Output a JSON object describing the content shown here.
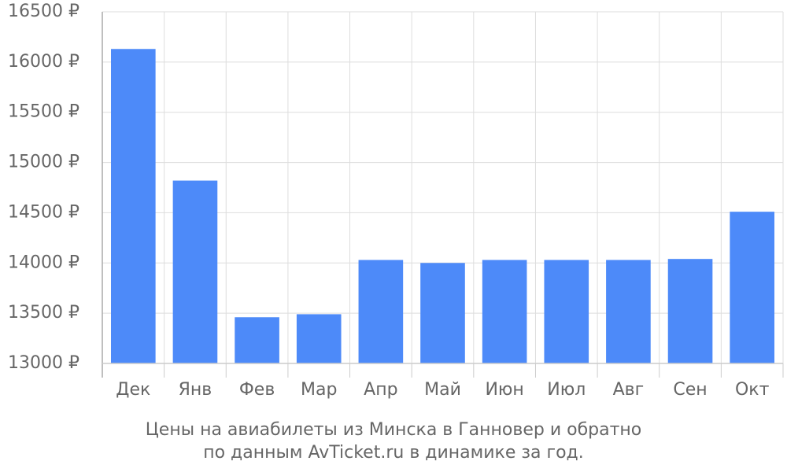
{
  "chart_data": {
    "type": "bar",
    "title": "Цены на авиабилеты из Минска в Ганновер и обратно",
    "subtitle": "по данным AvTicket.ru в динамике за год.",
    "categories": [
      "Дек",
      "Янв",
      "Фев",
      "Мар",
      "Апр",
      "Май",
      "Июн",
      "Июл",
      "Авг",
      "Сен",
      "Окт"
    ],
    "values": [
      16130,
      14820,
      13460,
      13490,
      14030,
      14000,
      14030,
      14030,
      14030,
      14040,
      14510
    ],
    "color": "#4d8af9",
    "ylim": [
      13000,
      16500
    ],
    "yticks": [
      {
        "value": 13000,
        "label": "13000 ₽"
      },
      {
        "value": 13500,
        "label": "13500 ₽"
      },
      {
        "value": 14000,
        "label": "14000 ₽"
      },
      {
        "value": 14500,
        "label": "14500 ₽"
      },
      {
        "value": 15000,
        "label": "15000 ₽"
      },
      {
        "value": 15500,
        "label": "15500 ₽"
      },
      {
        "value": 16000,
        "label": "16000 ₽"
      },
      {
        "value": 16500,
        "label": "16500 ₽"
      }
    ],
    "grid": true
  }
}
